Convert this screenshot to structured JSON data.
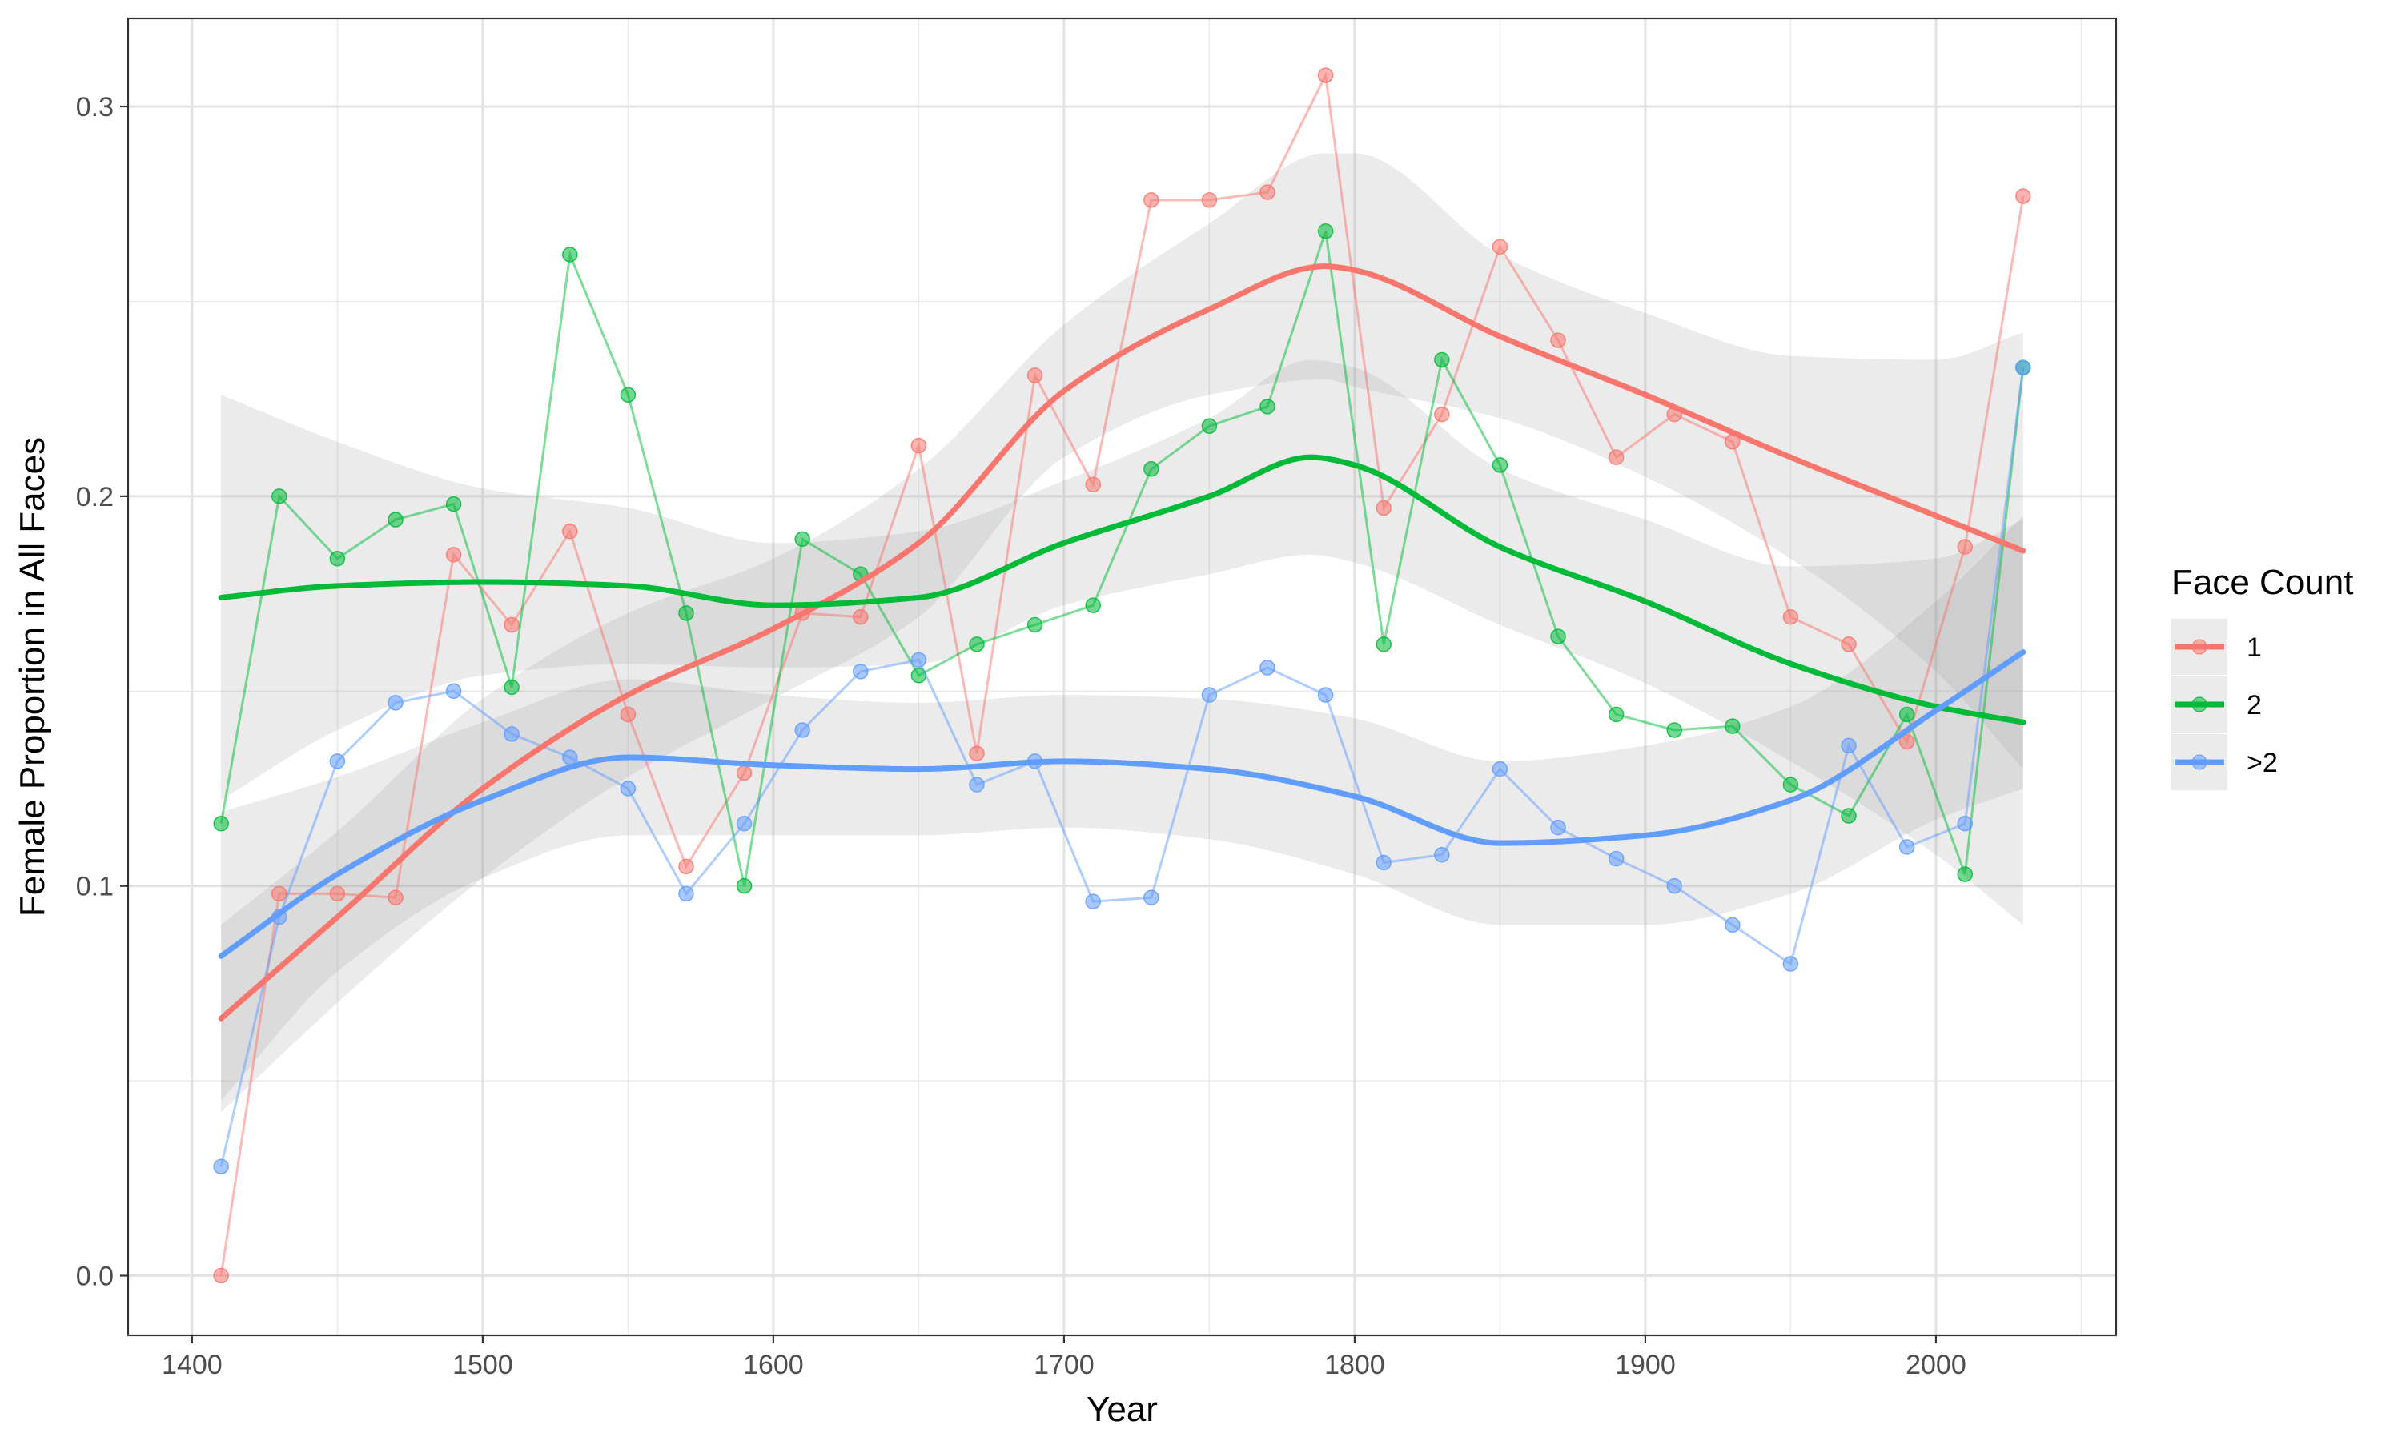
{
  "chart_data": {
    "type": "line",
    "title": "",
    "xlabel": "Year",
    "ylabel": "Female Proportion in All Faces",
    "xlim": [
      1378,
      2062
    ],
    "ylim": [
      -0.0153,
      0.3226
    ],
    "x_ticks": [
      1400,
      1500,
      1600,
      1700,
      1800,
      1900,
      2000
    ],
    "x_tick_labels": [
      "1400",
      "1500",
      "1600",
      "1700",
      "1800",
      "1900",
      "2000"
    ],
    "x_minor_ticks": [
      1450,
      1550,
      1650,
      1750,
      1850,
      1950,
      2050
    ],
    "y_ticks": [
      0.0,
      0.1,
      0.2,
      0.3
    ],
    "y_tick_labels": [
      "0.0",
      "0.1",
      "0.2",
      "0.3"
    ],
    "y_minor_ticks": [
      0.05,
      0.15,
      0.25
    ],
    "grid": true,
    "legend": {
      "title": "Face Count",
      "position": "right"
    },
    "x": [
      1410,
      1430,
      1450,
      1470,
      1490,
      1510,
      1530,
      1550,
      1570,
      1590,
      1610,
      1630,
      1650,
      1670,
      1690,
      1710,
      1730,
      1750,
      1770,
      1790,
      1810,
      1830,
      1850,
      1870,
      1890,
      1910,
      1930,
      1950,
      1970,
      1990,
      2010,
      2030
    ],
    "series": [
      {
        "name": "1",
        "color": "#F8766D",
        "values": [
          0.0,
          0.098,
          0.098,
          0.097,
          0.185,
          0.167,
          0.191,
          0.144,
          0.105,
          0.129,
          0.17,
          0.169,
          0.213,
          0.134,
          0.231,
          0.203,
          0.276,
          0.276,
          0.278,
          0.308,
          0.197,
          0.221,
          0.264,
          0.24,
          0.21,
          0.221,
          0.214,
          0.169,
          0.162,
          0.137,
          0.187,
          0.277
        ],
        "smooth_x": [
          1410,
          1450,
          1500,
          1550,
          1600,
          1650,
          1700,
          1750,
          1790,
          1800,
          1850,
          1900,
          1950,
          2000,
          2030
        ],
        "smooth": [
          0.066,
          0.092,
          0.125,
          0.149,
          0.166,
          0.188,
          0.227,
          0.248,
          0.259,
          0.258,
          0.241,
          0.226,
          0.21,
          0.195,
          0.186
        ],
        "ci_lower": [
          0.042,
          0.07,
          0.102,
          0.128,
          0.148,
          0.169,
          0.21,
          0.226,
          0.23,
          0.228,
          0.22,
          0.205,
          0.184,
          0.155,
          0.13
        ],
        "ci_upper": [
          0.09,
          0.114,
          0.148,
          0.17,
          0.184,
          0.207,
          0.244,
          0.27,
          0.288,
          0.288,
          0.262,
          0.247,
          0.236,
          0.235,
          0.242
        ]
      },
      {
        "name": "2",
        "color": "#00BA38",
        "values": [
          0.116,
          0.2,
          0.184,
          0.194,
          0.198,
          0.151,
          0.262,
          0.226,
          0.17,
          0.1,
          0.189,
          0.18,
          0.154,
          0.162,
          0.167,
          0.172,
          0.207,
          0.218,
          0.223,
          0.268,
          0.162,
          0.235,
          0.208,
          0.164,
          0.144,
          0.14,
          0.141,
          0.126,
          0.118,
          0.144,
          0.103,
          0.233
        ],
        "smooth_x": [
          1410,
          1450,
          1500,
          1550,
          1600,
          1650,
          1700,
          1750,
          1785,
          1800,
          1850,
          1900,
          1950,
          2000,
          2030
        ],
        "smooth": [
          0.174,
          0.177,
          0.178,
          0.177,
          0.172,
          0.174,
          0.188,
          0.2,
          0.21,
          0.208,
          0.187,
          0.173,
          0.157,
          0.146,
          0.142
        ],
        "ci_lower": [
          0.122,
          0.14,
          0.154,
          0.157,
          0.156,
          0.157,
          0.172,
          0.18,
          0.185,
          0.183,
          0.167,
          0.152,
          0.132,
          0.108,
          0.09
        ],
        "ci_upper": [
          0.226,
          0.214,
          0.202,
          0.197,
          0.188,
          0.191,
          0.204,
          0.22,
          0.235,
          0.233,
          0.207,
          0.194,
          0.182,
          0.184,
          0.194
        ]
      },
      {
        "name": ">2",
        "color": "#619CFF",
        "values": [
          0.028,
          0.092,
          0.132,
          0.147,
          0.15,
          0.139,
          0.133,
          0.125,
          0.098,
          0.116,
          0.14,
          0.155,
          0.158,
          0.126,
          0.132,
          0.096,
          0.097,
          0.149,
          0.156,
          0.149,
          0.106,
          0.108,
          0.13,
          0.115,
          0.107,
          0.1,
          0.09,
          0.08,
          0.136,
          0.11,
          0.116,
          0.233
        ],
        "smooth_x": [
          1410,
          1450,
          1500,
          1550,
          1600,
          1650,
          1700,
          1750,
          1800,
          1850,
          1900,
          1950,
          2000,
          2030
        ],
        "smooth": [
          0.082,
          0.103,
          0.122,
          0.133,
          0.131,
          0.13,
          0.132,
          0.13,
          0.123,
          0.111,
          0.113,
          0.122,
          0.145,
          0.16
        ],
        "ci_lower": [
          0.045,
          0.078,
          0.102,
          0.113,
          0.113,
          0.113,
          0.115,
          0.112,
          0.103,
          0.09,
          0.09,
          0.098,
          0.117,
          0.125
        ],
        "ci_upper": [
          0.119,
          0.128,
          0.142,
          0.153,
          0.149,
          0.147,
          0.149,
          0.148,
          0.143,
          0.132,
          0.136,
          0.146,
          0.173,
          0.195
        ]
      }
    ]
  }
}
